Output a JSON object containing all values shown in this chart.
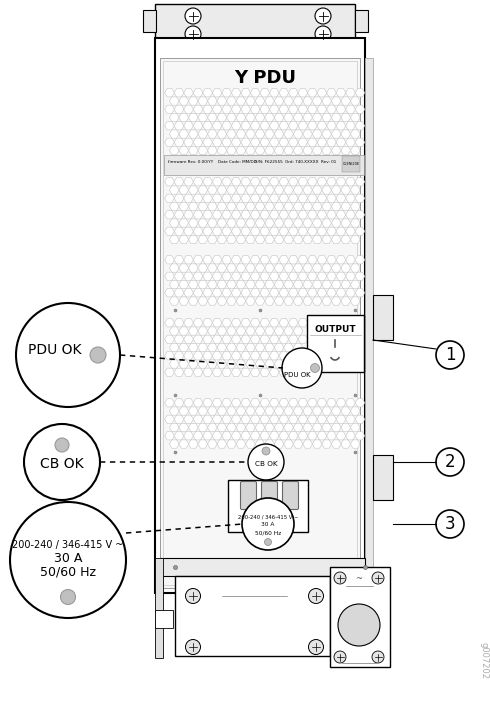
{
  "fig_width": 4.9,
  "fig_height": 7.16,
  "bg_color": "#ffffff",
  "lc": "#000000",
  "pdu_label": "Y PDU",
  "label1": "PDU OK",
  "label2": "CB OK",
  "label3_line1": "200-240 / 346-415 V ~",
  "label3_line2": "30 A",
  "label3_line3": "50/60 Hz",
  "output_label": "OUTPUT",
  "callouts": [
    "1",
    "2",
    "3"
  ],
  "watermark": "g007202",
  "hex_color": "#bbbbbb",
  "gray_led": "#c0c0c0",
  "light_bg": "#f0f0f0"
}
